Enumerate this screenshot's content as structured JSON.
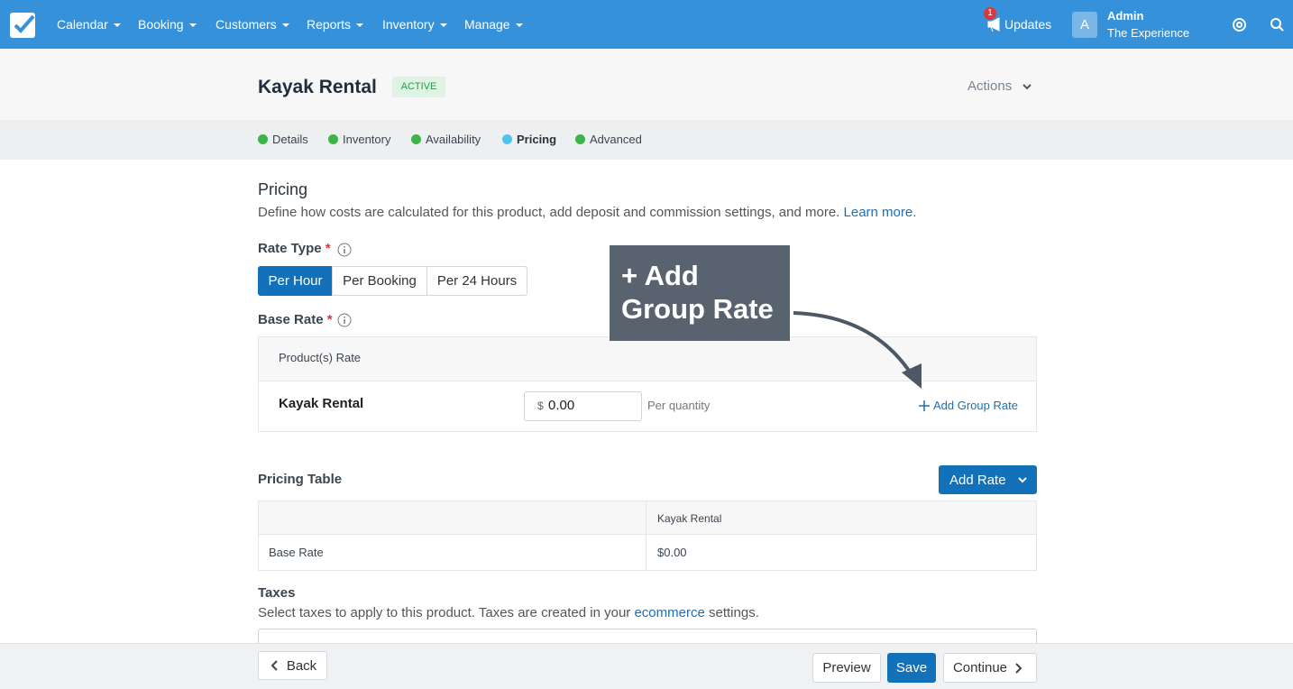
{
  "nav": {
    "items": [
      "Calendar",
      "Booking",
      "Customers",
      "Reports",
      "Inventory",
      "Manage"
    ],
    "updates_badge": "1",
    "updates": "Updates",
    "avatar": "A",
    "user_name": "Admin",
    "user_org": "The Experience"
  },
  "header": {
    "title": "Kayak Rental",
    "status": "ACTIVE",
    "actions": "Actions"
  },
  "steps": [
    {
      "label": "Details",
      "color": "#3bb54a"
    },
    {
      "label": "Inventory",
      "color": "#3bb54a"
    },
    {
      "label": "Availability",
      "color": "#3bb54a"
    },
    {
      "label": "Pricing",
      "color": "#4fc3ef"
    },
    {
      "label": "Advanced",
      "color": "#3bb54a"
    }
  ],
  "pricing": {
    "title": "Pricing",
    "description": "Define how costs are calculated for this product, add deposit and commission settings, and more.",
    "link": "Learn more",
    "link_end": ".",
    "rate_type_label": "Rate Type",
    "required": "*",
    "rate_types": [
      "Per Hour",
      "Per Booking",
      "Per 24 Hours"
    ],
    "base_rate_label": "Base Rate",
    "base_rate_header": "Product(s) Rate",
    "product": "Kayak Rental",
    "currency": "$",
    "amount": "0.00",
    "per": "Per quantity",
    "add_group_rate": "Add Group Rate"
  },
  "callout": "+ Add Group Rate",
  "pricing_table": {
    "title": "Pricing Table",
    "add_rate": "Add Rate",
    "column": "Kayak Rental",
    "rows": [
      [
        "Base Rate",
        "$0.00"
      ]
    ]
  },
  "taxes": {
    "title": "Taxes",
    "description": "Select taxes to apply to this product. Taxes are created in your",
    "link": "ecommerce",
    "description_end": "settings."
  },
  "footer": {
    "back": "Back",
    "preview": "Preview",
    "save": "Save",
    "continue": "Continue"
  }
}
